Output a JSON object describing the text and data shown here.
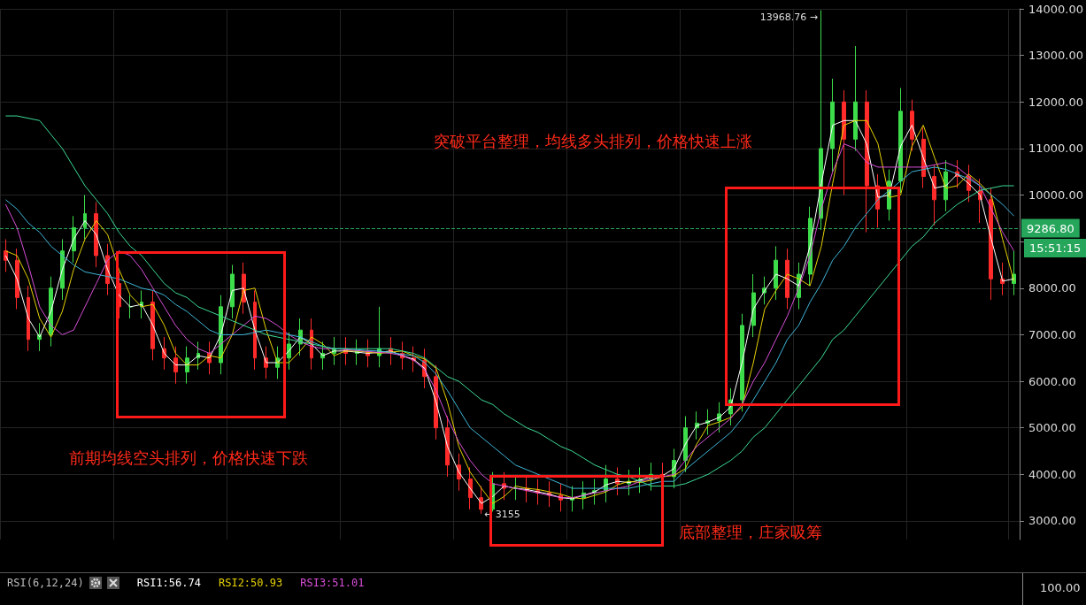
{
  "chart_data": {
    "type": "candlestick",
    "tick_labels": "y",
    "grid": true,
    "marker": "none",
    "line_style": "solid",
    "categories": [
      null,
      null,
      null,
      null,
      null,
      null,
      null,
      null,
      null,
      null,
      null,
      null,
      null,
      null,
      null,
      null,
      null,
      null,
      null,
      null,
      null,
      null,
      null,
      null,
      null,
      null,
      null,
      null,
      null,
      null,
      null,
      null,
      null,
      null,
      null,
      null,
      null,
      null,
      null,
      null,
      null,
      null,
      null,
      null,
      null,
      null,
      null,
      null,
      null,
      null,
      null,
      null,
      null,
      null,
      null,
      null,
      null,
      null,
      null,
      null,
      null,
      null,
      null,
      null,
      null,
      null,
      null,
      null,
      null,
      null,
      null,
      null,
      null,
      null,
      null,
      null,
      null,
      null,
      null,
      null,
      null,
      null,
      null,
      null,
      null,
      null,
      null,
      null,
      null,
      null
    ],
    "ohlc": [
      [
        8800,
        9050,
        8350,
        8600
      ],
      [
        8600,
        8850,
        7550,
        7800
      ],
      [
        7800,
        8050,
        6650,
        6900
      ],
      [
        6900,
        7250,
        6650,
        7000
      ],
      [
        7000,
        8250,
        6750,
        8000
      ],
      [
        8000,
        9050,
        7750,
        8800
      ],
      [
        8800,
        9550,
        8550,
        9300
      ],
      [
        9300,
        10000,
        9050,
        9600
      ],
      [
        9600,
        9850,
        8450,
        8700
      ],
      [
        8700,
        8950,
        7850,
        8100
      ],
      [
        8100,
        8350,
        7350,
        7600
      ],
      [
        7600,
        7850,
        7350,
        7600
      ],
      [
        7600,
        7950,
        7350,
        7700
      ],
      [
        7700,
        7950,
        6450,
        6700
      ],
      [
        6700,
        6950,
        6250,
        6500
      ],
      [
        6500,
        6750,
        5950,
        6200
      ],
      [
        6200,
        6750,
        5950,
        6500
      ],
      [
        6500,
        6850,
        6250,
        6600
      ],
      [
        6600,
        6850,
        6150,
        6400
      ],
      [
        6400,
        7850,
        6150,
        7600
      ],
      [
        7600,
        8500,
        7350,
        8300
      ],
      [
        8300,
        8550,
        7450,
        7700
      ],
      [
        7700,
        7950,
        6250,
        6500
      ],
      [
        6500,
        6750,
        6050,
        6300
      ],
      [
        6300,
        6750,
        6050,
        6500
      ],
      [
        6500,
        7050,
        6250,
        6800
      ],
      [
        6800,
        7350,
        6550,
        7100
      ],
      [
        7100,
        7350,
        6250,
        6500
      ],
      [
        6500,
        6850,
        6250,
        6600
      ],
      [
        6600,
        6950,
        6350,
        6700
      ],
      [
        6700,
        6950,
        6350,
        6600
      ],
      [
        6600,
        6900,
        6350,
        6650
      ],
      [
        6650,
        6900,
        6300,
        6550
      ],
      [
        6550,
        7600,
        6300,
        6700
      ],
      [
        6700,
        6950,
        6350,
        6600
      ],
      [
        6600,
        6850,
        6250,
        6500
      ],
      [
        6500,
        6750,
        6200,
        6450
      ],
      [
        6450,
        6700,
        5850,
        6100
      ],
      [
        6100,
        6350,
        4750,
        5000
      ],
      [
        5000,
        5250,
        3950,
        4200
      ],
      [
        4200,
        4450,
        3650,
        3900
      ],
      [
        3900,
        4150,
        3250,
        3500
      ],
      [
        3500,
        3750,
        3155,
        3250
      ],
      [
        3250,
        4050,
        3200,
        3800
      ],
      [
        3800,
        4050,
        3450,
        3700
      ],
      [
        3700,
        3950,
        3450,
        3700
      ],
      [
        3700,
        3950,
        3400,
        3650
      ],
      [
        3650,
        3900,
        3350,
        3600
      ],
      [
        3600,
        3850,
        3300,
        3550
      ],
      [
        3550,
        3800,
        3200,
        3450
      ],
      [
        3450,
        3750,
        3200,
        3500
      ],
      [
        3500,
        3850,
        3250,
        3600
      ],
      [
        3600,
        3900,
        3350,
        3650
      ],
      [
        3650,
        4200,
        3400,
        3900
      ],
      [
        3900,
        4150,
        3550,
        3800
      ],
      [
        3800,
        4100,
        3550,
        3850
      ],
      [
        3850,
        4150,
        3600,
        3900
      ],
      [
        3900,
        4250,
        3650,
        4000
      ],
      [
        4000,
        4250,
        3700,
        3950
      ],
      [
        3950,
        4550,
        3700,
        4300
      ],
      [
        4300,
        5250,
        4050,
        5000
      ],
      [
        5000,
        5350,
        4750,
        5100
      ],
      [
        5100,
        5400,
        4850,
        5150
      ],
      [
        5150,
        5550,
        4900,
        5300
      ],
      [
        5300,
        5850,
        5050,
        5600
      ],
      [
        5600,
        7450,
        5350,
        7200
      ],
      [
        7200,
        8300,
        6950,
        7900
      ],
      [
        7900,
        8250,
        7650,
        8000
      ],
      [
        8000,
        8900,
        7750,
        8600
      ],
      [
        8600,
        8850,
        7550,
        7800
      ],
      [
        7800,
        8550,
        7550,
        8300
      ],
      [
        8300,
        9750,
        8050,
        9500
      ],
      [
        9500,
        13968.76,
        9250,
        11000
      ],
      [
        11000,
        12500,
        10500,
        12000
      ],
      [
        12000,
        12250,
        10000,
        11200
      ],
      [
        11200,
        13200,
        10950,
        12000
      ],
      [
        12000,
        12250,
        9200,
        10200
      ],
      [
        10200,
        10450,
        9300,
        9700
      ],
      [
        9700,
        10550,
        9450,
        10300
      ],
      [
        10300,
        12300,
        10050,
        11800
      ],
      [
        11800,
        12050,
        10950,
        11200
      ],
      [
        11200,
        11450,
        10150,
        10400
      ],
      [
        10400,
        10650,
        9350,
        9900
      ],
      [
        9900,
        10750,
        9650,
        10500
      ],
      [
        10500,
        10750,
        10150,
        10400
      ],
      [
        10400,
        10650,
        9850,
        10100
      ],
      [
        10100,
        10350,
        9400,
        9900
      ],
      [
        9900,
        10150,
        7750,
        8200
      ],
      [
        8200,
        8550,
        7850,
        8100
      ],
      [
        8100,
        8800,
        7850,
        8300
      ]
    ],
    "series": [
      {
        "type": "line",
        "color": "#ffffff",
        "values": [
          8700,
          8200,
          7350,
          6950,
          7500,
          8400,
          9050,
          9450,
          9150,
          8400,
          7850,
          7600,
          7650,
          7200,
          6600,
          6350,
          6350,
          6550,
          6500,
          7000,
          7950,
          8000,
          7100,
          6400,
          6400,
          6650,
          6950,
          6800,
          6550,
          6650,
          6650,
          6625,
          6600,
          6625,
          6650,
          6550,
          6475,
          6275,
          5550,
          4600,
          4050,
          3700,
          3375,
          3525,
          3750,
          3700,
          3675,
          3625,
          3575,
          3500,
          3475,
          3550,
          3625,
          3775,
          3850,
          3825,
          3875,
          3950,
          3975,
          4125,
          4650,
          5050,
          5125,
          5225,
          5450,
          6400,
          7550,
          7950,
          8300,
          8200,
          8050,
          8900,
          10250,
          11500,
          11600,
          11600,
          11100,
          9950,
          10000,
          11050,
          11500,
          10800,
          10150,
          10200,
          10450,
          10250,
          10000,
          9050,
          8150,
          8200
        ]
      },
      {
        "type": "line",
        "color": "#e6d200",
        "values": [
          8800,
          8700,
          8200,
          7350,
          6950,
          7500,
          8400,
          9050,
          9450,
          9150,
          8400,
          7850,
          7600,
          7650,
          7200,
          6600,
          6350,
          6350,
          6550,
          6500,
          7000,
          7950,
          8000,
          7100,
          6400,
          6400,
          6650,
          6950,
          6800,
          6550,
          6650,
          6650,
          6625,
          6600,
          6625,
          6650,
          6550,
          6475,
          6275,
          5550,
          4600,
          4050,
          3700,
          3375,
          3525,
          3750,
          3700,
          3675,
          3625,
          3575,
          3500,
          3475,
          3550,
          3625,
          3775,
          3850,
          3825,
          3875,
          3950,
          3975,
          4125,
          4650,
          5050,
          5125,
          5225,
          5450,
          6400,
          7550,
          7950,
          8300,
          8200,
          8050,
          8900,
          10250,
          11500,
          11600,
          11600,
          11100,
          9950,
          10000,
          11050,
          11500,
          10800,
          10150,
          10200,
          10450,
          10250,
          10000,
          9050,
          8150
        ]
      },
      {
        "type": "line",
        "color": "#d84fd8",
        "values": [
          9800,
          9300,
          8500,
          7600,
          7200,
          7000,
          7100,
          7600,
          8100,
          8600,
          8800,
          8700,
          8400,
          8000,
          7600,
          7200,
          6900,
          6700,
          6600,
          6800,
          7000,
          7200,
          7400,
          7350,
          7200,
          7000,
          6850,
          6750,
          6700,
          6700,
          6680,
          6660,
          6640,
          6620,
          6600,
          6550,
          6450,
          6250,
          5800,
          5200,
          4700,
          4300,
          4000,
          3800,
          3750,
          3700,
          3650,
          3600,
          3550,
          3500,
          3500,
          3550,
          3600,
          3650,
          3700,
          3750,
          3850,
          3900,
          3950,
          4000,
          4300,
          4600,
          4800,
          5000,
          5200,
          5500,
          6000,
          6400,
          6900,
          7400,
          8000,
          8700,
          9700,
          10500,
          11100,
          11000,
          10700,
          10600,
          10600,
          10600,
          10600,
          10600,
          10650,
          10700,
          10600,
          10400,
          10200,
          9700,
          9200,
          8800
        ]
      },
      {
        "type": "line",
        "color": "#3fb6d8",
        "values": [
          9900,
          9700,
          9400,
          9200,
          8900,
          8700,
          8500,
          8350,
          8300,
          8250,
          8200,
          8100,
          8000,
          7950,
          7850,
          7650,
          7500,
          7300,
          7100,
          7000,
          7000,
          7000,
          7050,
          7100,
          7050,
          7000,
          6950,
          6850,
          6750,
          6700,
          6700,
          6680,
          6660,
          6650,
          6620,
          6580,
          6550,
          6400,
          6150,
          5800,
          5400,
          5000,
          4800,
          4600,
          4400,
          4200,
          4100,
          4000,
          3900,
          3800,
          3700,
          3700,
          3700,
          3700,
          3700,
          3700,
          3750,
          3800,
          3850,
          3850,
          4100,
          4300,
          4500,
          4700,
          4900,
          5200,
          5600,
          6000,
          6400,
          6900,
          7200,
          7700,
          8100,
          8600,
          8900,
          9300,
          9600,
          9900,
          10100,
          10300,
          10500,
          10550,
          10600,
          10550,
          10450,
          10350,
          10200,
          10000,
          9800,
          9550
        ]
      },
      {
        "type": "line",
        "color": "#3ddc97",
        "values": [
          11700,
          11700,
          11650,
          11600,
          11300,
          11000,
          10600,
          10200,
          9900,
          9600,
          9200,
          8900,
          8700,
          8400,
          8100,
          7900,
          7800,
          7600,
          7500,
          7400,
          7300,
          7200,
          7100,
          7000,
          6950,
          6900,
          6850,
          6800,
          6750,
          6700,
          6700,
          6700,
          6700,
          6700,
          6700,
          6650,
          6600,
          6500,
          6300,
          6100,
          6000,
          5800,
          5600,
          5500,
          5300,
          5150,
          5000,
          4900,
          4750,
          4600,
          4500,
          4350,
          4200,
          4100,
          4000,
          3950,
          3850,
          3750,
          3750,
          3750,
          3800,
          3900,
          4000,
          4150,
          4300,
          4500,
          4800,
          5000,
          5300,
          5600,
          5900,
          6200,
          6500,
          6900,
          7100,
          7400,
          7700,
          8000,
          8300,
          8600,
          8900,
          9100,
          9400,
          9600,
          9800,
          9950,
          10100,
          10150,
          10200,
          10200
        ]
      }
    ],
    "ylim": [
      2600,
      14000
    ],
    "yticks": [
      {
        "value": 3000,
        "label": "3000.00"
      },
      {
        "value": 4000,
        "label": "4000.00"
      },
      {
        "value": 5000,
        "label": "5000.00"
      },
      {
        "value": 6000,
        "label": "6000.00"
      },
      {
        "value": 7000,
        "label": "7000.00"
      },
      {
        "value": 8000,
        "label": "8000.00"
      },
      {
        "value": 9000,
        "label": null
      },
      {
        "value": 10000,
        "label": "10000.00"
      },
      {
        "value": 11000,
        "label": "11000.00"
      },
      {
        "value": 12000,
        "label": "12000.00"
      },
      {
        "value": 13000,
        "label": "13000.00"
      },
      {
        "value": 14000,
        "label": "14000.00"
      }
    ],
    "ref_lines": [
      {
        "axis": "y",
        "value": 9286.8,
        "label": "9286.80",
        "color": "#26a65b",
        "line_style": "dashed"
      }
    ],
    "annotations": [
      "前期均线空头排列，价格快速下跌",
      "底部整理，庄家吸筹",
      "突破平台整理，均线多头排列，价格快速上涨",
      "15:51:15",
      "13968.76 →",
      "← 3155",
      "RSI(6,12,24)",
      "RSI1:56.74",
      "RSI2:50.93",
      "RSI3:51.01",
      "100.00"
    ]
  }
}
